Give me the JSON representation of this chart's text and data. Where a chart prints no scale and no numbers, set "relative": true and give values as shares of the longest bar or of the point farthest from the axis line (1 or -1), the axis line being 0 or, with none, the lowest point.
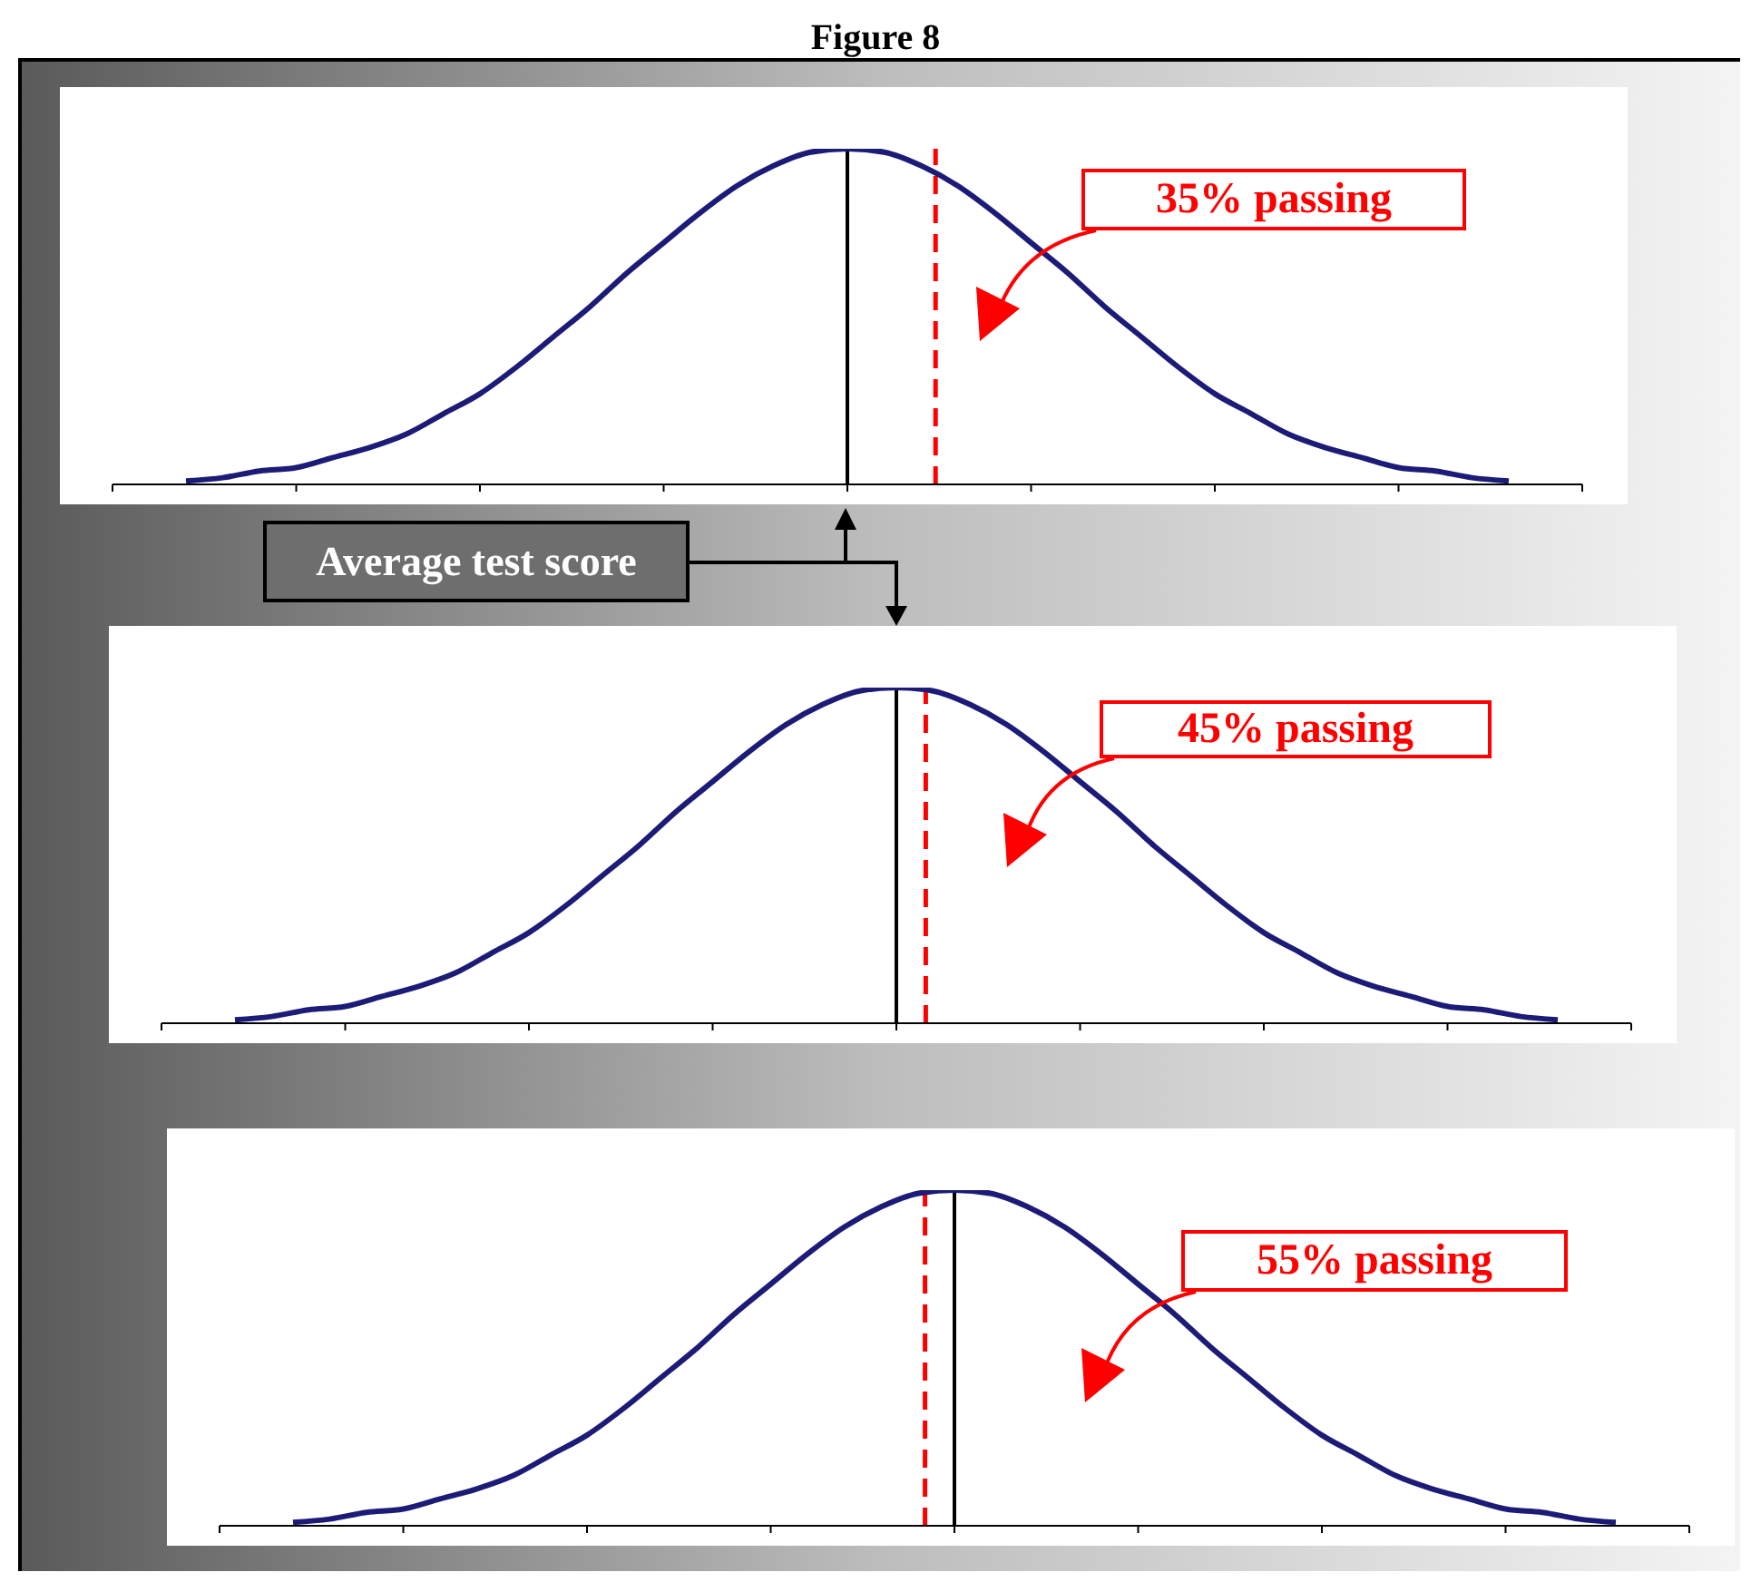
{
  "chart_data": [
    {
      "type": "line",
      "title": "Figure 8",
      "relative": true,
      "color": "#1c1c78",
      "categories": [
        null,
        null,
        null,
        null,
        null,
        null,
        null,
        null,
        null,
        null,
        null,
        null,
        null,
        null,
        null,
        null,
        null,
        null,
        null,
        null,
        null,
        null,
        null,
        null,
        null,
        null,
        null,
        null,
        null,
        null,
        null,
        null,
        null,
        null,
        null,
        null,
        null,
        null,
        null,
        null,
        null
      ],
      "values": [
        null,
        null,
        0.01,
        0.02,
        0.04,
        0.05,
        0.08,
        0.11,
        0.15,
        0.21,
        0.27,
        0.35,
        0.44,
        0.53,
        0.63,
        0.72,
        0.81,
        0.89,
        0.95,
        0.99,
        1,
        0.99,
        0.95,
        0.89,
        0.81,
        0.72,
        0.63,
        0.53,
        0.44,
        0.35,
        0.27,
        0.21,
        0.15,
        0.11,
        0.08,
        0.05,
        0.04,
        0.02,
        0.01,
        null,
        null
      ],
      "annotations": [
        "35% passing",
        "Average test score"
      ]
    },
    {
      "type": "line",
      "relative": true,
      "color": "#1c1c78",
      "categories": [
        null,
        null,
        null,
        null,
        null,
        null,
        null,
        null,
        null,
        null,
        null,
        null,
        null,
        null,
        null,
        null,
        null,
        null,
        null,
        null,
        null,
        null,
        null,
        null,
        null,
        null,
        null,
        null,
        null,
        null,
        null,
        null,
        null,
        null,
        null,
        null,
        null,
        null,
        null,
        null,
        null
      ],
      "values": [
        null,
        null,
        0.01,
        0.02,
        0.04,
        0.05,
        0.08,
        0.11,
        0.15,
        0.21,
        0.27,
        0.35,
        0.44,
        0.53,
        0.63,
        0.72,
        0.81,
        0.89,
        0.95,
        0.99,
        1,
        0.99,
        0.95,
        0.89,
        0.81,
        0.72,
        0.63,
        0.53,
        0.44,
        0.35,
        0.27,
        0.21,
        0.15,
        0.11,
        0.08,
        0.05,
        0.04,
        0.02,
        0.01,
        null,
        null
      ],
      "annotations": [
        "45% passing"
      ]
    },
    {
      "type": "line",
      "relative": true,
      "color": "#1c1c78",
      "categories": [
        null,
        null,
        null,
        null,
        null,
        null,
        null,
        null,
        null,
        null,
        null,
        null,
        null,
        null,
        null,
        null,
        null,
        null,
        null,
        null,
        null,
        null,
        null,
        null,
        null,
        null,
        null,
        null,
        null,
        null,
        null,
        null,
        null,
        null,
        null,
        null,
        null,
        null,
        null,
        null,
        null
      ],
      "values": [
        null,
        null,
        0.01,
        0.02,
        0.04,
        0.05,
        0.08,
        0.11,
        0.15,
        0.21,
        0.27,
        0.35,
        0.44,
        0.53,
        0.63,
        0.72,
        0.81,
        0.89,
        0.95,
        0.99,
        1,
        0.99,
        0.95,
        0.89,
        0.81,
        0.72,
        0.63,
        0.53,
        0.44,
        0.35,
        0.27,
        0.21,
        0.15,
        0.11,
        0.08,
        0.05,
        0.04,
        0.02,
        0.01,
        null,
        null
      ],
      "annotations": [
        "55% passing"
      ]
    }
  ]
}
